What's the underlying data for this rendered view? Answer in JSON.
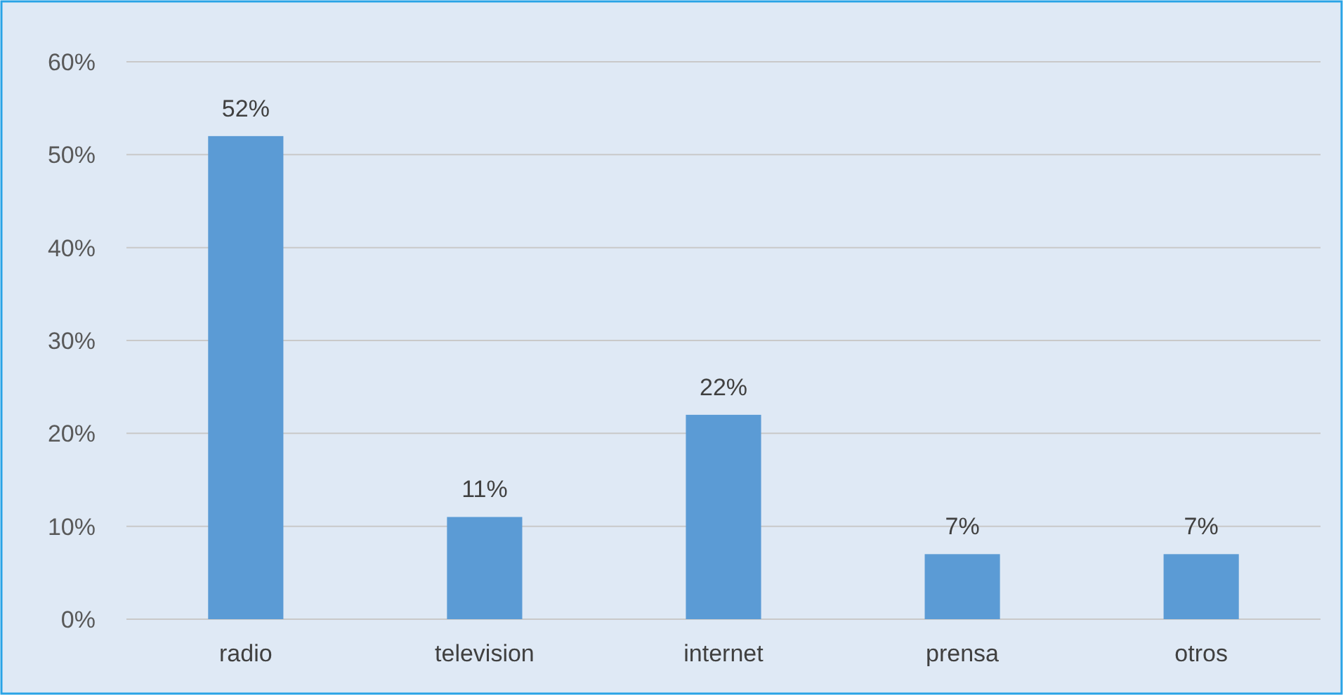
{
  "chart_data": {
    "type": "bar",
    "categories": [
      "radio",
      "television",
      "internet",
      "prensa",
      "otros"
    ],
    "values": [
      52,
      11,
      22,
      7,
      7
    ],
    "value_labels": [
      "52%",
      "11%",
      "22%",
      "7%",
      "7%"
    ],
    "color": "#5b9bd5",
    "ylim": [
      0,
      60
    ],
    "yticks": [
      {
        "value": 0,
        "label": "0%"
      },
      {
        "value": 10,
        "label": "10%"
      },
      {
        "value": 20,
        "label": "20%"
      },
      {
        "value": 30,
        "label": "30%"
      },
      {
        "value": 40,
        "label": "40%"
      },
      {
        "value": 50,
        "label": "50%"
      },
      {
        "value": 60,
        "label": "60%"
      }
    ],
    "grid": "y"
  }
}
